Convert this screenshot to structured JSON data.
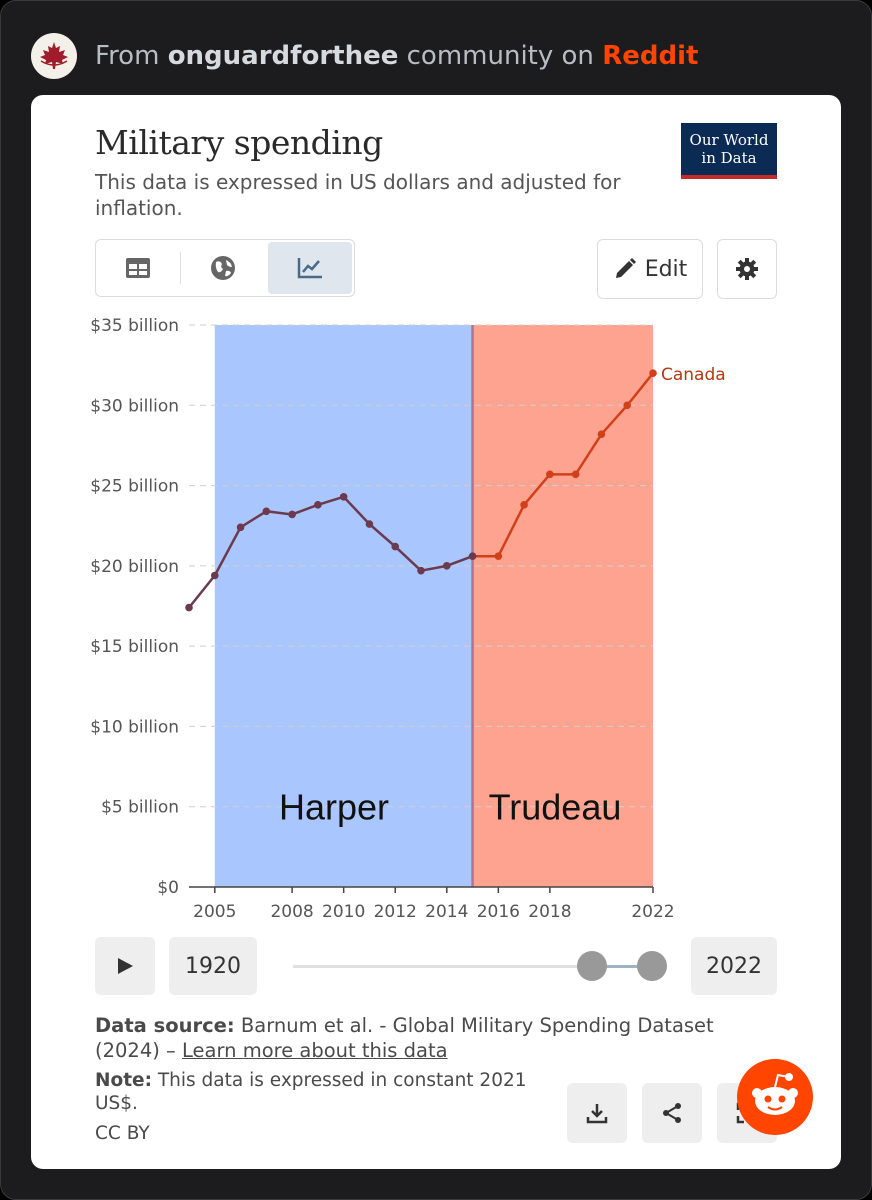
{
  "header": {
    "prefix": "From",
    "community": "onguardforthee",
    "middle": "community on",
    "platform": "Reddit"
  },
  "card": {
    "title": "Military spending",
    "subtitle": "This data is expressed in US dollars and adjusted for inflation.",
    "logo_line1": "Our World",
    "logo_line2": "in Data",
    "edit_label": "Edit",
    "tabs": [
      "table",
      "map",
      "chart"
    ],
    "active_tab": "chart"
  },
  "timeline": {
    "start_year": "1920",
    "end_year": "2022"
  },
  "footer": {
    "source_label": "Data source:",
    "source_text": "Barnum et al. - Global Military Spending Dataset (2024) –",
    "source_link": "Learn more about this data",
    "note_label": "Note:",
    "note_text": "This data is expressed in constant 2021 US$.",
    "license": "CC BY"
  },
  "colors": {
    "reddit": "#ff4500",
    "harper_band": "#a9c6ff",
    "trudeau_band": "#ffa391",
    "line_harper": "#6b3a4e",
    "line_trudeau": "#d2401b",
    "owid_navy": "#0b2b55"
  },
  "chart_data": {
    "type": "line",
    "title": "Military spending",
    "series": [
      {
        "name": "Canada",
        "x": [
          2004,
          2005,
          2006,
          2007,
          2008,
          2009,
          2010,
          2011,
          2012,
          2013,
          2014,
          2015,
          2016,
          2017,
          2018,
          2019,
          2020,
          2021,
          2022
        ],
        "y": [
          17.4,
          19.4,
          22.4,
          23.4,
          23.2,
          23.8,
          24.3,
          22.6,
          21.2,
          19.7,
          20.0,
          20.6,
          20.6,
          23.8,
          25.7,
          25.7,
          28.2,
          30.0,
          32.0
        ]
      }
    ],
    "x_ticks": [
      2005,
      2008,
      2010,
      2012,
      2014,
      2016,
      2018,
      2022
    ],
    "x_tick_labels": [
      "2005",
      "2008",
      "2010",
      "2012",
      "2014",
      "2016",
      "2018",
      "2022"
    ],
    "y_ticks": [
      0,
      5,
      10,
      15,
      20,
      25,
      30,
      35
    ],
    "y_tick_labels": [
      "$0",
      "$5 billion",
      "$10 billion",
      "$15 billion",
      "$20 billion",
      "$25 billion",
      "$30 billion",
      "$35 billion"
    ],
    "xlim": [
      2004,
      2022
    ],
    "ylim": [
      0,
      35
    ],
    "series_label": "Canada",
    "annotations": [
      {
        "label": "Harper",
        "x_start": 2005,
        "x_end": 2015
      },
      {
        "label": "Trudeau",
        "x_start": 2015,
        "x_end": 2022
      }
    ],
    "grid": "horizontal dashed"
  }
}
